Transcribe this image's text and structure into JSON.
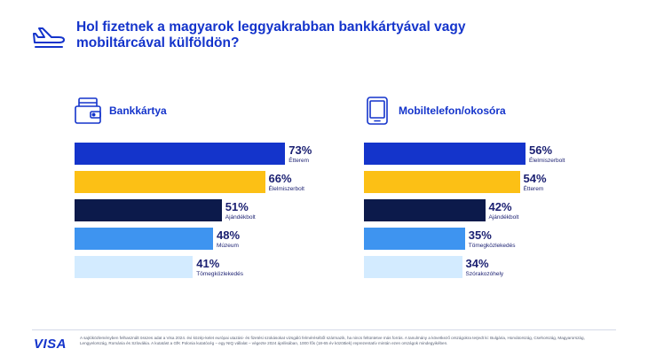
{
  "title": "Hol fizetnek a magyarok leggyakrabban bankkártyával vagy mobiltárcával külföldön?",
  "colors": {
    "visa_blue": "#1434cb",
    "gold": "#fcc015",
    "navy": "#0c1a4b",
    "sky": "#3e94f0",
    "pale": "#d3ebff"
  },
  "panels": [
    {
      "icon": "wallet-card-icon",
      "label": "Bankkártya"
    },
    {
      "icon": "smartphone-icon",
      "label": "Mobiltelefon/okosóra"
    }
  ],
  "chart_data": [
    {
      "type": "bar",
      "orientation": "horizontal",
      "title": "Bankkártya",
      "categories": [
        "Étterem",
        "Élelmiszerbolt",
        "Ajándékbolt",
        "Múzeum",
        "Tömegközlekedés"
      ],
      "values": [
        73,
        66,
        51,
        48,
        41
      ],
      "value_labels": [
        "73%",
        "66%",
        "51%",
        "48%",
        "41%"
      ],
      "bar_colors": [
        "#1434cb",
        "#fcc015",
        "#0c1a4b",
        "#3e94f0",
        "#d3ebff"
      ],
      "xlim": [
        0,
        100
      ]
    },
    {
      "type": "bar",
      "orientation": "horizontal",
      "title": "Mobiltelefon/okosóra",
      "categories": [
        "Élelmiszerbolt",
        "Étterem",
        "Ajándékbolt",
        "Tömegközlekedés",
        "Szórakozóhely"
      ],
      "values": [
        56,
        54,
        42,
        35,
        34
      ],
      "value_labels": [
        "56%",
        "54%",
        "42%",
        "35%",
        "34%"
      ],
      "bar_colors": [
        "#1434cb",
        "#fcc015",
        "#0c1a4b",
        "#3e94f0",
        "#d3ebff"
      ],
      "xlim": [
        0,
        100
      ]
    }
  ],
  "footer": {
    "brand": "VISA",
    "note": "A sajtóközleményben felhasznált összes adat a Visa 2024. évi közép-kelet európai utazási- és fizetési szokásokat vizsgáló felméréséből származik, ha nincs feltüntetve más forrás. A tanulmány a következő országokra terjedt ki: Bulgária, Horvátország, Csehország, Magyarország, Lengyelország, Románia és Szlovákia. A kutatást a GfK Polonia kutatócég – egy NIQ vállalat – végezte 2024 áprilisában, 1000 fős (18-65 év közöttiek) reprezentatív mintán ezen országok mindegyikében."
  }
}
